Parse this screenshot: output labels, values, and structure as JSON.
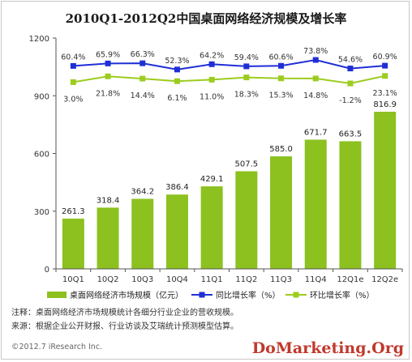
{
  "title": "2010Q1-2012Q2中国桌面网络经济规模及增长率",
  "colors": {
    "bar": "#8cc11f",
    "yoy": "#1f2fd6",
    "qoq": "#9ccc1e",
    "watermark": "#c0392b"
  },
  "chart_data": {
    "type": "bar",
    "categories": [
      "10Q1",
      "10Q2",
      "10Q3",
      "10Q4",
      "11Q1",
      "11Q2",
      "11Q3",
      "11Q4",
      "12Q1e",
      "12Q2e"
    ],
    "ylim": [
      0,
      1200
    ],
    "yticks": [
      "0",
      "300",
      "600",
      "900",
      "1200"
    ],
    "grid": false,
    "legend_position": "bottom",
    "series": [
      {
        "name": "桌面网络经济市场规模（亿元）",
        "type": "bar",
        "values": [
          261.3,
          318.4,
          364.2,
          386.4,
          429.1,
          507.5,
          585.0,
          671.7,
          663.5,
          816.9
        ],
        "labels": [
          "261.3",
          "318.4",
          "364.2",
          "386.4",
          "429.1",
          "507.5",
          "585.0",
          "671.7",
          "663.5",
          "816.9"
        ]
      },
      {
        "name": "同比增长率（%）",
        "type": "line",
        "values": [
          60.4,
          65.9,
          66.3,
          52.3,
          64.2,
          59.4,
          60.6,
          73.8,
          54.6,
          60.9
        ],
        "labels": [
          "60.4%",
          "65.9%",
          "66.3%",
          "52.3%",
          "64.2%",
          "59.4%",
          "60.6%",
          "73.8%",
          "54.6%",
          "60.9%"
        ]
      },
      {
        "name": "环比增长率（%）",
        "type": "line",
        "values": [
          3.0,
          21.8,
          14.4,
          6.1,
          11.0,
          18.3,
          15.3,
          14.8,
          -1.2,
          23.1
        ],
        "labels": [
          "3.0%",
          "21.8%",
          "14.4%",
          "6.1%",
          "11.0%",
          "18.3%",
          "15.3%",
          "14.8%",
          "-1.2%",
          "23.1%"
        ]
      }
    ]
  },
  "notes": {
    "note_line": "注释：桌面网络经济市场规模统计各细分行业企业的营收规模。",
    "source_line": "来源：根据企业公开财报、行业访谈及艾瑞统计预测模型估算。"
  },
  "copyright": "©2012.7 iResearch Inc.",
  "watermark": "DoMarketing.Org"
}
